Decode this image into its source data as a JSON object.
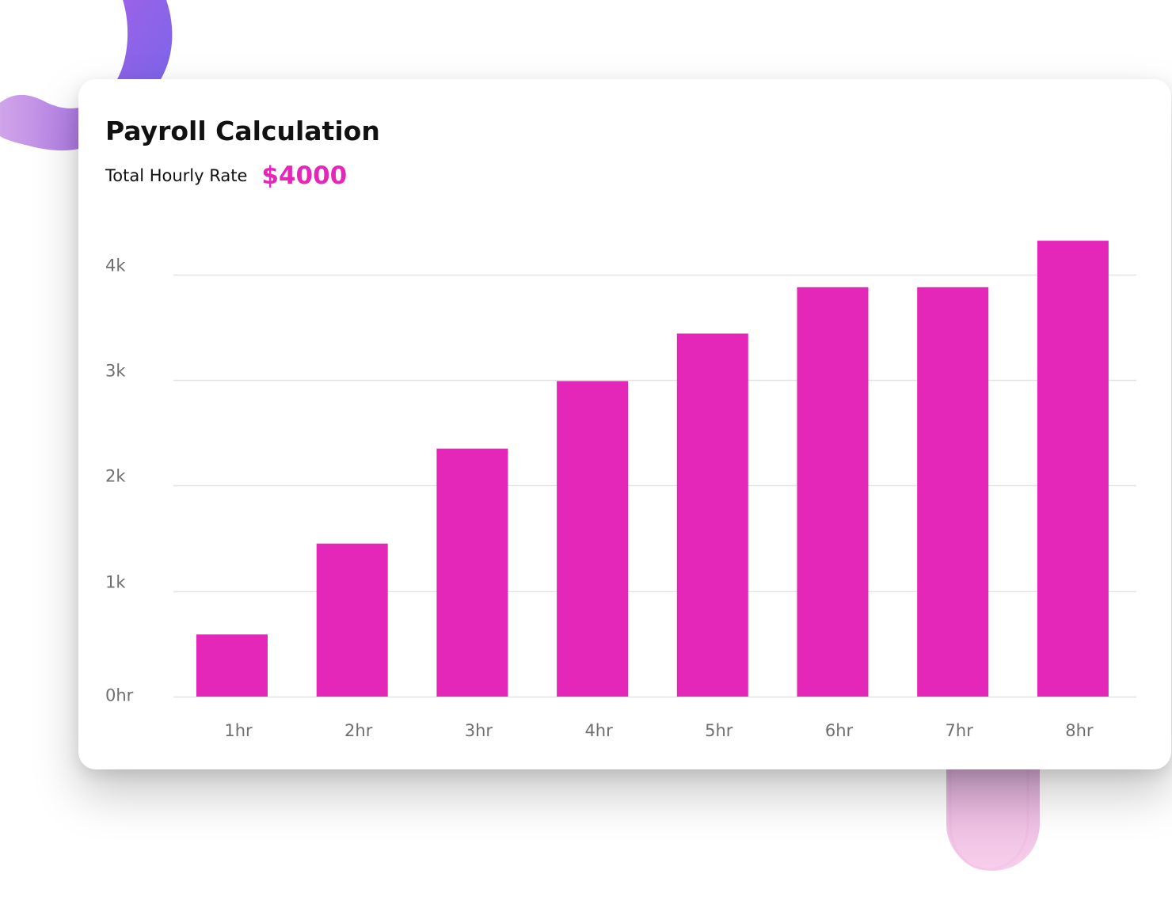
{
  "header": {
    "title": "Payroll Calculation",
    "rate_label": "Total Hourly Rate",
    "rate_value": "$4000"
  },
  "colors": {
    "bar": "#e427b9",
    "grid": "#e3e3e3",
    "tick_text": "#6f6f6f",
    "accent_purple": "#8a63e8",
    "accent_lavender": "#c89ae6",
    "accent_pink": "#f2bfe4"
  },
  "chart_data": {
    "type": "bar",
    "categories": [
      "1hr",
      "2hr",
      "3hr",
      "4hr",
      "5hr",
      "6hr",
      "7hr",
      "8hr"
    ],
    "values": [
      590,
      1450,
      2350,
      2990,
      3440,
      3880,
      3880,
      4320
    ],
    "y_ticks": [
      {
        "value": 0,
        "label": "0hr"
      },
      {
        "value": 1000,
        "label": "1k"
      },
      {
        "value": 2000,
        "label": "2k"
      },
      {
        "value": 3000,
        "label": "3k"
      },
      {
        "value": 4000,
        "label": "4k"
      }
    ],
    "ylim": [
      0,
      4000
    ],
    "grid": true,
    "legend": "none"
  }
}
